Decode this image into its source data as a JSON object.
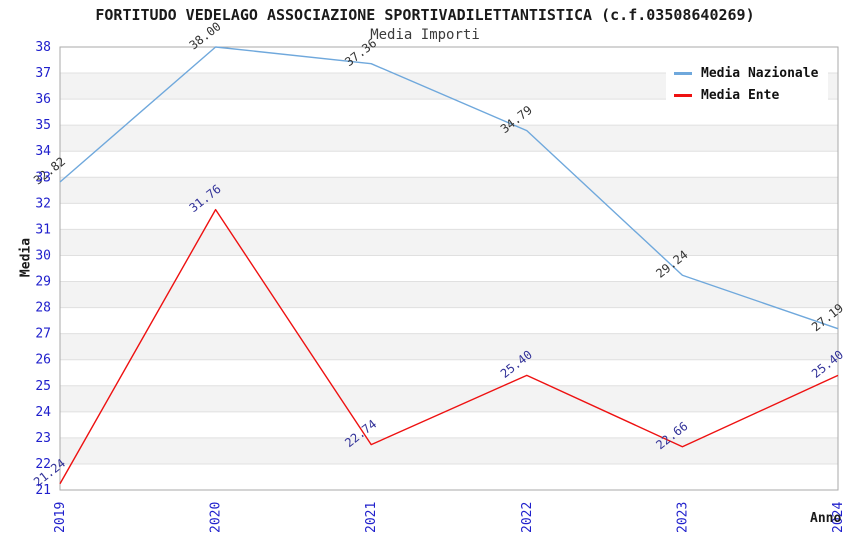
{
  "header": {
    "title": "FORTITUDO VEDELAGO ASSOCIAZIONE SPORTIVADILETTANTISTICA (c.f.03508640269)",
    "subtitle": "Media Importi"
  },
  "axes": {
    "ylabel": "Media",
    "xlabel": "Anno"
  },
  "legend": {
    "items": [
      {
        "label": "Media Nazionale",
        "color": "#6fa8dc"
      },
      {
        "label": "Media Ente",
        "color": "#ee1111"
      }
    ]
  },
  "chart_data": {
    "type": "line",
    "title": "FORTITUDO VEDELAGO ASSOCIAZIONE SPORTIVADILETTANTISTICA (c.f.03508640269)",
    "subtitle": "Media Importi",
    "xlabel": "Anno",
    "ylabel": "Media",
    "categories": [
      "2019",
      "2020",
      "2021",
      "2022",
      "2023",
      "2024"
    ],
    "series": [
      {
        "name": "Media Nazionale",
        "color": "#6fa8dc",
        "label_color": "#333333",
        "values": [
          32.82,
          38.0,
          37.36,
          34.79,
          29.24,
          27.19
        ]
      },
      {
        "name": "Media Ente",
        "color": "#ee1111",
        "label_color": "#333399",
        "values": [
          21.24,
          31.76,
          22.74,
          25.4,
          22.66,
          25.4
        ]
      }
    ],
    "ylim": [
      21,
      38
    ],
    "ytick_step": 1,
    "value_format_decimals": 2,
    "grid": true,
    "legend_position": "top-right",
    "tick_color": "#2020cc",
    "band_colors": [
      "#ffffff",
      "#f3f3f3"
    ],
    "grid_color": "#e0e0e0",
    "frame_color": "#aaaaaa"
  }
}
